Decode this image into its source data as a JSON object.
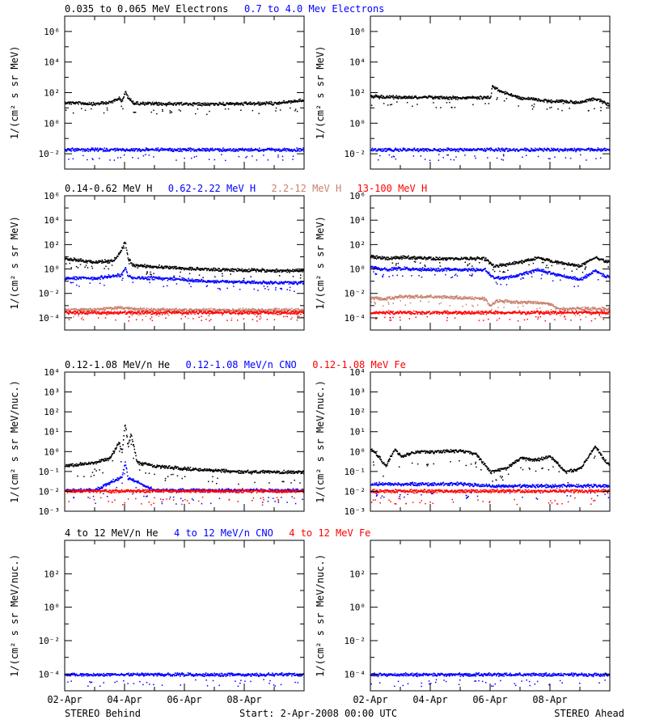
{
  "chart_data": [
    {
      "type": "scatter",
      "panel": "behind",
      "legend": [
        {
          "text": "0.035 to 0.065 MeV Electrons",
          "color": "#000000"
        },
        {
          "text": "0.7 to 4.0 Mev Electrons",
          "color": "#0000ff"
        }
      ],
      "ylabel": "1/(cm² s sr MeV)",
      "yscale": "log",
      "ylim_log10": [
        -3,
        7
      ],
      "ytick_exponents": [
        -2,
        0,
        2,
        4,
        6
      ],
      "ytick_labels": [
        "10⁻²",
        "10⁰",
        "10²",
        "10⁴",
        "10⁶"
      ],
      "xlim_days": [
        0,
        8
      ],
      "series": [
        {
          "color": "#000000",
          "x": [
            0,
            1.0,
            1.5,
            1.8,
            1.9,
            2.0,
            2.1,
            2.3,
            3.0,
            4.0,
            5.0,
            6.0,
            7.0,
            8.0
          ],
          "y": [
            25,
            20,
            25,
            50,
            30,
            120,
            50,
            22,
            20,
            20,
            20,
            20,
            22,
            35
          ]
        },
        {
          "color": "#0000ff",
          "x": [
            0,
            1,
            2,
            3,
            4,
            5,
            6,
            7,
            8
          ],
          "y": [
            0.02,
            0.02,
            0.02,
            0.02,
            0.02,
            0.02,
            0.02,
            0.02,
            0.02
          ]
        }
      ]
    },
    {
      "type": "scatter",
      "panel": "ahead",
      "ylabel": "1/(cm² s sr MeV)",
      "yscale": "log",
      "ylim_log10": [
        -3,
        7
      ],
      "ytick_exponents": [
        -2,
        0,
        2,
        4,
        6
      ],
      "ytick_labels": [
        "10⁻²",
        "10⁰",
        "10²",
        "10⁴",
        "10⁶"
      ],
      "xlim_days": [
        0,
        8
      ],
      "series": [
        {
          "color": "#000000",
          "x": [
            0,
            1,
            2,
            3,
            4.0,
            4.05,
            4.3,
            4.6,
            5.0,
            6.0,
            7.0,
            7.5,
            7.8,
            8.0
          ],
          "y": [
            60,
            55,
            55,
            50,
            55,
            300,
            150,
            80,
            50,
            30,
            25,
            45,
            25,
            15
          ]
        },
        {
          "color": "#0000ff",
          "x": [
            0,
            1,
            2,
            3,
            4,
            5,
            6,
            7,
            8
          ],
          "y": [
            0.02,
            0.02,
            0.02,
            0.02,
            0.02,
            0.02,
            0.02,
            0.02,
            0.02
          ]
        }
      ]
    },
    {
      "type": "scatter",
      "panel": "behind",
      "legend": [
        {
          "text": "0.14-0.62 MeV H",
          "color": "#000000"
        },
        {
          "text": "0.62-2.22 MeV H",
          "color": "#0000ff"
        },
        {
          "text": "2.2-12 MeV H",
          "color": "#c8826e"
        },
        {
          "text": "13-100 MeV H",
          "color": "#ff0000"
        }
      ],
      "ylabel": "1/(cm² s sr MeV)",
      "yscale": "log",
      "ylim_log10": [
        -5,
        6
      ],
      "ytick_exponents": [
        -4,
        -2,
        0,
        2,
        4,
        6
      ],
      "ytick_labels": [
        "10⁻⁴",
        "10⁻²",
        "10⁰",
        "10²",
        "10⁴",
        "10⁶"
      ],
      "xlim_days": [
        0,
        8
      ],
      "series": [
        {
          "color": "#000000",
          "x": [
            0,
            1.0,
            1.6,
            1.85,
            2.0,
            2.1,
            2.3,
            3.0,
            4.0,
            5.0,
            6.0,
            7.0,
            8.0
          ],
          "y": [
            8,
            4,
            5,
            30,
            200,
            8,
            2,
            1.8,
            1.2,
            1.0,
            0.9,
            0.8,
            0.8
          ]
        },
        {
          "color": "#0000ff",
          "x": [
            0,
            1.0,
            1.6,
            1.9,
            2.0,
            2.1,
            2.3,
            3.0,
            4.0,
            5.0,
            6.0,
            7.0,
            8.0
          ],
          "y": [
            0.2,
            0.2,
            0.3,
            0.4,
            1.5,
            0.3,
            0.2,
            0.2,
            0.15,
            0.1,
            0.1,
            0.08,
            0.08
          ]
        },
        {
          "color": "#c8826e",
          "x": [
            0,
            1.0,
            1.8,
            2.2,
            3.0,
            4.0,
            5.0,
            6.0,
            8.0
          ],
          "y": [
            0.0005,
            0.0005,
            0.0008,
            0.0006,
            0.0005,
            0.0005,
            0.0005,
            0.0005,
            0.0005
          ]
        },
        {
          "color": "#ff0000",
          "x": [
            0,
            2,
            4,
            6,
            8
          ],
          "y": [
            0.0003,
            0.0003,
            0.0003,
            0.0003,
            0.0003
          ]
        }
      ]
    },
    {
      "type": "scatter",
      "panel": "ahead",
      "ylabel": "1/(cm² s sr MeV)",
      "yscale": "log",
      "ylim_log10": [
        -5,
        6
      ],
      "ytick_exponents": [
        -4,
        -2,
        0,
        2,
        4,
        6
      ],
      "ytick_labels": [
        "10⁻⁴",
        "10⁻²",
        "10⁰",
        "10²",
        "10⁴",
        "10⁶"
      ],
      "xlim_days": [
        0,
        8
      ],
      "series": [
        {
          "color": "#000000",
          "x": [
            0,
            0.5,
            1.0,
            2.0,
            3.0,
            3.8,
            4.1,
            4.5,
            5.0,
            5.6,
            6.0,
            7.0,
            7.5,
            7.8,
            8.0
          ],
          "y": [
            12,
            8,
            10,
            8,
            8,
            8,
            2,
            2.5,
            4,
            10,
            5,
            2,
            10,
            5,
            4
          ]
        },
        {
          "color": "#0000ff",
          "x": [
            0,
            0.5,
            1.0,
            2.0,
            3.0,
            3.8,
            4.1,
            4.5,
            5.0,
            5.6,
            6.0,
            7.0,
            7.5,
            7.8,
            8.0
          ],
          "y": [
            1.5,
            1.0,
            1.2,
            1.0,
            1.0,
            1.0,
            0.2,
            0.2,
            0.4,
            1.0,
            0.5,
            0.15,
            0.8,
            0.3,
            0.25
          ]
        },
        {
          "color": "#c8826e",
          "x": [
            0,
            0.5,
            1.0,
            2.0,
            3.0,
            3.8,
            4.0,
            4.2,
            5.0,
            5.5,
            6.0,
            6.3
          ],
          "y": [
            0.005,
            0.004,
            0.006,
            0.006,
            0.005,
            0.004,
            0.001,
            0.003,
            0.002,
            0.002,
            0.0015,
            0.0006
          ]
        },
        {
          "color": "#ff0000",
          "x": [
            0,
            2,
            4,
            6,
            8
          ],
          "y": [
            0.0003,
            0.0003,
            0.0003,
            0.0003,
            0.0003
          ]
        }
      ]
    },
    {
      "type": "scatter",
      "panel": "behind",
      "legend": [
        {
          "text": "0.12-1.08 MeV/n He",
          "color": "#000000"
        },
        {
          "text": "0.12-1.08 MeV/n CNO",
          "color": "#0000ff"
        },
        {
          "text": "0.12-1.08 MeV Fe",
          "color": "#ff0000"
        }
      ],
      "ylabel": "1/(cm² s sr MeV/nuc.)",
      "yscale": "log",
      "ylim_log10": [
        -3,
        4
      ],
      "ytick_exponents": [
        -3,
        -2,
        -1,
        0,
        1,
        2,
        3,
        4
      ],
      "ytick_labels": [
        "10⁻³",
        "10⁻²",
        "10⁻¹",
        "10⁰",
        "10¹",
        "10²",
        "10³",
        "10⁴"
      ],
      "xlim_days": [
        0,
        8
      ],
      "series": [
        {
          "color": "#000000",
          "x": [
            0,
            0.5,
            1.0,
            1.5,
            1.8,
            1.9,
            2.0,
            2.1,
            2.2,
            2.4,
            3.0,
            4.0,
            5.0,
            6.0,
            7.0,
            8.0
          ],
          "y": [
            0.2,
            0.25,
            0.3,
            0.5,
            3,
            1,
            30,
            2,
            8,
            0.3,
            0.2,
            0.15,
            0.12,
            0.1,
            0.1,
            0.1
          ]
        },
        {
          "color": "#0000ff",
          "x": [
            0,
            1,
            1.9,
            2.0,
            2.1,
            3,
            4,
            5,
            6,
            7,
            8
          ],
          "y": [
            0.012,
            0.012,
            0.06,
            0.3,
            0.05,
            0.012,
            0.012,
            0.012,
            0.012,
            0.012,
            0.012
          ]
        },
        {
          "color": "#ff0000",
          "x": [
            0,
            2,
            4,
            6,
            8
          ],
          "y": [
            0.011,
            0.011,
            0.011,
            0.011,
            0.011
          ]
        }
      ]
    },
    {
      "type": "scatter",
      "panel": "ahead",
      "ylabel": "1/(cm² s sr MeV/nuc.)",
      "yscale": "log",
      "ylim_log10": [
        -3,
        4
      ],
      "ytick_exponents": [
        -3,
        -2,
        -1,
        0,
        1,
        2,
        3,
        4
      ],
      "ytick_labels": [
        "10⁻³",
        "10⁻²",
        "10⁻¹",
        "10⁰",
        "10¹",
        "10²",
        "10³",
        "10⁴"
      ],
      "xlim_days": [
        0,
        8
      ],
      "series": [
        {
          "color": "#000000",
          "x": [
            0,
            0.3,
            0.5,
            0.8,
            1.0,
            1.5,
            2.0,
            3.0,
            3.5,
            4.0,
            4.5,
            5.0,
            5.5,
            6.0,
            6.5,
            7.0,
            7.5,
            7.8,
            8.0
          ],
          "y": [
            1.5,
            0.5,
            0.2,
            1.5,
            0.6,
            1.0,
            1.0,
            1.2,
            0.8,
            0.1,
            0.15,
            0.5,
            0.4,
            0.6,
            0.1,
            0.15,
            2,
            0.4,
            0.2
          ]
        },
        {
          "color": "#0000ff",
          "x": [
            0,
            1,
            2,
            3,
            4,
            5,
            6,
            7,
            8
          ],
          "y": [
            0.025,
            0.025,
            0.025,
            0.025,
            0.02,
            0.02,
            0.02,
            0.02,
            0.02
          ]
        },
        {
          "color": "#ff0000",
          "x": [
            0,
            2,
            4,
            6,
            8
          ],
          "y": [
            0.011,
            0.011,
            0.011,
            0.011,
            0.011
          ]
        }
      ]
    },
    {
      "type": "scatter",
      "panel": "behind",
      "legend": [
        {
          "text": "4 to 12 MeV/n He",
          "color": "#000000"
        },
        {
          "text": "4 to 12 MeV/n CNO",
          "color": "#0000ff"
        },
        {
          "text": "4 to 12 MeV Fe",
          "color": "#ff0000"
        }
      ],
      "ylabel": "1/(cm² s sr MeV/nuc.)",
      "yscale": "log",
      "ylim_log10": [
        -5,
        4
      ],
      "ytick_exponents": [
        -4,
        -2,
        0,
        2
      ],
      "ytick_labels": [
        "10⁻⁴",
        "10⁻²",
        "10⁰",
        "10²"
      ],
      "xlim_days": [
        0,
        8
      ],
      "series": [
        {
          "color": "#0000ff",
          "x": [
            0,
            2,
            4,
            6,
            8
          ],
          "y": [
            0.0001,
            0.0001,
            0.0001,
            0.0001,
            0.0001
          ]
        }
      ]
    },
    {
      "type": "scatter",
      "panel": "ahead",
      "ylabel": "1/(cm² s sr MeV/nuc.)",
      "yscale": "log",
      "ylim_log10": [
        -5,
        4
      ],
      "ytick_exponents": [
        -4,
        -2,
        0,
        2
      ],
      "ytick_labels": [
        "10⁻⁴",
        "10⁻²",
        "10⁰",
        "10²"
      ],
      "xlim_days": [
        0,
        8
      ],
      "series": [
        {
          "color": "#0000ff",
          "x": [
            0,
            2,
            4,
            6,
            8
          ],
          "y": [
            0.0001,
            0.0001,
            0.0001,
            0.0001,
            0.0001
          ]
        }
      ]
    }
  ],
  "xaxis": {
    "tick_labels": [
      "02-Apr",
      "04-Apr",
      "06-Apr",
      "08-Apr"
    ],
    "tick_days": [
      0,
      2,
      4,
      6
    ]
  },
  "footer": {
    "left": "STEREO Behind",
    "center": "Start:  2-Apr-2008 00:00 UTC",
    "right": "STEREO Ahead"
  }
}
